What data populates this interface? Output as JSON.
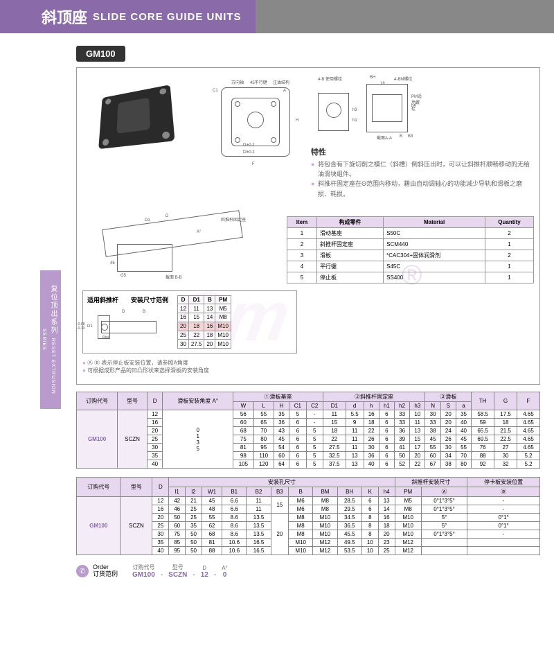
{
  "header": {
    "cn": "斜顶座",
    "en": "SLIDE CORE GUIDE UNITS"
  },
  "model_badge": "GM100",
  "side_tab": {
    "cn": "复位顶出系列",
    "en": "RESET EXTRUSION SERIES"
  },
  "diagrams": {
    "front_labels": [
      "C1",
      "A",
      "C2",
      "F",
      "f1±0.2",
      "f2±0.2",
      "万向轴",
      "45平行键",
      "注油结构",
      "H"
    ],
    "side_labels": [
      "BH",
      "4-BM螺栓",
      "18",
      "4-B 使用螺栓",
      "PM适用螺栓",
      "h4",
      "h3",
      "h1",
      "h",
      "截面A-A",
      "B",
      "B3",
      "4-9℃"
    ],
    "angle_labels": [
      "D",
      "D1",
      "A°",
      "G5",
      "45",
      "截面 B-B",
      "斜推杆固定座"
    ]
  },
  "features": {
    "title": "特性",
    "items": [
      "将包含有下旋切削之模仁（斜槽）倒斜压出时，可以让斜推杆顺畅移动的无给油滑块组件。",
      "斜推杆固定座在Θ范围内移动，藉由自动调轴心的功能减少导轨和滑板之磨损、耗损。"
    ]
  },
  "mini_panel": {
    "label_rod": "适用斜推杆",
    "label_example": "安装尺寸范例",
    "mini_diag_labels": [
      "D",
      "B",
      "D1",
      "PM",
      "-0.08",
      "-0.10"
    ],
    "spec_headers": [
      "D",
      "D1",
      "B",
      "PM"
    ],
    "spec_rows": [
      [
        "12",
        "11",
        "13",
        "M5"
      ],
      [
        "16",
        "15",
        "14",
        "M8"
      ],
      [
        "20",
        "18",
        "16",
        "M10"
      ],
      [
        "25",
        "22",
        "18",
        "M10"
      ],
      [
        "30",
        "27.5",
        "20",
        "M10"
      ]
    ],
    "highlight_row_index": 2
  },
  "mat_table": {
    "headers": [
      "Item",
      "构成零件",
      "Material",
      "Quantity"
    ],
    "rows": [
      [
        "1",
        "滑动基座",
        "S50C",
        "2"
      ],
      [
        "2",
        "斜推杆固定座",
        "SCM440",
        "1"
      ],
      [
        "3",
        "滑板",
        "*CAC304+固体润滑剂",
        "2"
      ],
      [
        "4",
        "平行键",
        "S45C",
        "1"
      ],
      [
        "5",
        "停止板",
        "SS400",
        "1"
      ]
    ]
  },
  "notes": [
    "Ⓐ Ⓑ 表示停止板安装位置，请参照A角度",
    "可根据成形产品的凹凸形状来选择滑板的安装角度"
  ],
  "table1": {
    "header_groups": [
      {
        "label": "订购代号",
        "span": 1
      },
      {
        "label": "型号",
        "span": 1
      },
      {
        "label": "D",
        "span": 1
      },
      {
        "label": "滑板安装角度 A°",
        "span": 1
      },
      {
        "label": "①滑板基座",
        "span": 5
      },
      {
        "label": "②斜推杆固定座",
        "span": 6
      },
      {
        "label": "③滑板",
        "span": 3
      },
      {
        "label": "TH",
        "span": 1
      },
      {
        "label": "G",
        "span": 1
      },
      {
        "label": "F",
        "span": 1
      }
    ],
    "sub_headers": [
      "",
      "",
      "",
      "",
      "W",
      "L",
      "H",
      "C1",
      "C2",
      "D1",
      "d",
      "h",
      "h1",
      "h2",
      "h3",
      "N",
      "S",
      "a",
      "",
      "",
      ""
    ],
    "code": "GM100",
    "type": "SCZN",
    "angles": "0\n1\n3\n5",
    "rows": [
      [
        "12",
        "56",
        "55",
        "35",
        "5",
        "-",
        "11",
        "5.5",
        "16",
        "6",
        "33",
        "10",
        "30",
        "20",
        "35",
        "58.5",
        "17.5",
        "4.65"
      ],
      [
        "16",
        "60",
        "65",
        "36",
        "6",
        "-",
        "15",
        "9",
        "18",
        "6",
        "33",
        "11",
        "33",
        "20",
        "40",
        "59",
        "18",
        "4.65"
      ],
      [
        "20",
        "68",
        "70",
        "43",
        "6",
        "5",
        "18",
        "11",
        "22",
        "6",
        "36",
        "13",
        "38",
        "24",
        "40",
        "65.5",
        "21.5",
        "4.65"
      ],
      [
        "25",
        "75",
        "80",
        "45",
        "6",
        "5",
        "22",
        "11",
        "26",
        "6",
        "39",
        "15",
        "45",
        "26",
        "45",
        "69.5",
        "22.5",
        "4.65"
      ],
      [
        "30",
        "81",
        "95",
        "54",
        "6",
        "5",
        "27.5",
        "11",
        "30",
        "6",
        "41",
        "17",
        "55",
        "30",
        "55",
        "76",
        "27",
        "4.65"
      ],
      [
        "35",
        "98",
        "110",
        "60",
        "6",
        "5",
        "32.5",
        "13",
        "36",
        "6",
        "50",
        "20",
        "60",
        "34",
        "70",
        "88",
        "30",
        "5.2"
      ],
      [
        "40",
        "105",
        "120",
        "64",
        "6",
        "5",
        "37.5",
        "13",
        "40",
        "6",
        "52",
        "22",
        "67",
        "38",
        "80",
        "92",
        "32",
        "5.2"
      ]
    ]
  },
  "table2": {
    "header_groups": [
      {
        "label": "订购代号",
        "span": 1
      },
      {
        "label": "型号",
        "span": 1
      },
      {
        "label": "D",
        "span": 1
      },
      {
        "label": "安装孔尺寸",
        "span": 11
      },
      {
        "label": "斜推杆安装尺寸",
        "span": 2
      },
      {
        "label": "停卡板安装位置",
        "span": 2
      }
    ],
    "sub_headers": [
      "",
      "",
      "",
      "l1",
      "l2",
      "W1",
      "B1",
      "B2",
      "B3",
      "B",
      "BM",
      "BH",
      "K",
      "h4",
      "PM",
      "Ⓐ",
      "Ⓑ"
    ],
    "code": "GM100",
    "type": "SCZN",
    "rows": [
      [
        "12",
        "42",
        "21",
        "45",
        "6.6",
        "11",
        "15",
        "M6",
        "M8",
        "28.5",
        "6",
        "13",
        "M5",
        "0°1°3°5°",
        "-"
      ],
      [
        "16",
        "46",
        "25",
        "48",
        "6.6",
        "11",
        "",
        "M6",
        "M8",
        "29.5",
        "6",
        "14",
        "M8",
        "0°1°3°5°",
        "-"
      ],
      [
        "20",
        "50",
        "25",
        "55",
        "8.6",
        "13.5",
        "",
        "M8",
        "M10",
        "34.5",
        "8",
        "16",
        "M10",
        "5°",
        "0°1°"
      ],
      [
        "25",
        "60",
        "35",
        "62",
        "8.6",
        "13.5",
        "20",
        "M8",
        "M10",
        "36.5",
        "8",
        "18",
        "M10",
        "5°",
        "0°1°"
      ],
      [
        "30",
        "75",
        "50",
        "68",
        "8.6",
        "13.5",
        "",
        "M8",
        "M10",
        "45.5",
        "8",
        "20",
        "M10",
        "0°1°3°5°",
        "-"
      ],
      [
        "35",
        "85",
        "50",
        "81",
        "10.6",
        "16.5",
        "",
        "M10",
        "M12",
        "49.5",
        "10",
        "23",
        "M12",
        "",
        ""
      ],
      [
        "40",
        "95",
        "50",
        "88",
        "10.6",
        "16.5",
        "",
        "M10",
        "M12",
        "53.5",
        "10",
        "25",
        "M12",
        "",
        ""
      ]
    ],
    "b3_merge_vals": [
      "15",
      "20"
    ]
  },
  "order": {
    "label_en": "Order",
    "label_cn": "订货范例",
    "parts_labels": [
      "订购代号",
      "型号",
      "D",
      "A°"
    ],
    "parts_values": [
      "GM100",
      "SCZN",
      "12",
      "0"
    ]
  }
}
